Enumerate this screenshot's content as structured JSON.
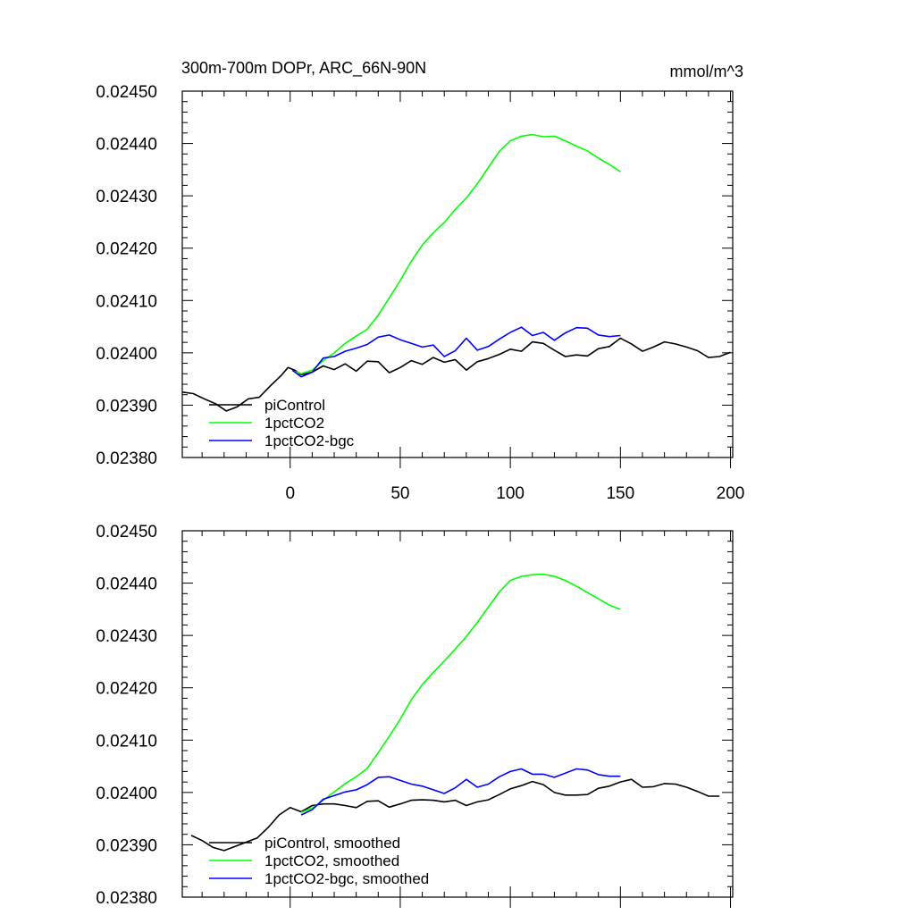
{
  "chart_data": [
    {
      "type": "line",
      "title": "300m-700m DOPr, ARC_66N-90N",
      "units": "mmol/m^3",
      "xlim": [
        -49,
        201
      ],
      "ylim": [
        0.0238,
        0.0245
      ],
      "yticks": [
        "0.02380",
        "0.02390",
        "0.02400",
        "0.02410",
        "0.02420",
        "0.02430",
        "0.02440",
        "0.02450"
      ],
      "xticks": [
        "0",
        "50",
        "100",
        "150",
        "200"
      ],
      "legend_position": "bottom-left",
      "series": [
        {
          "name": "piControl",
          "color": "#000000",
          "points": [
            [
              -49,
              0.023925
            ],
            [
              -44,
              0.023922
            ],
            [
              -39,
              0.023912
            ],
            [
              -34,
              0.023903
            ],
            [
              -29,
              0.023889
            ],
            [
              -24,
              0.023897
            ],
            [
              -19,
              0.023912
            ],
            [
              -14,
              0.023915
            ],
            [
              -9,
              0.023937
            ],
            [
              -4,
              0.023957
            ],
            [
              -1,
              0.023972
            ],
            [
              2,
              0.023967
            ],
            [
              5,
              0.023958
            ],
            [
              10,
              0.023963
            ],
            [
              15,
              0.023975
            ],
            [
              20,
              0.023968
            ],
            [
              25,
              0.023979
            ],
            [
              30,
              0.023965
            ],
            [
              35,
              0.023984
            ],
            [
              40,
              0.023983
            ],
            [
              45,
              0.023962
            ],
            [
              50,
              0.023972
            ],
            [
              55,
              0.023985
            ],
            [
              60,
              0.023978
            ],
            [
              65,
              0.023991
            ],
            [
              70,
              0.023982
            ],
            [
              75,
              0.023987
            ],
            [
              80,
              0.023967
            ],
            [
              85,
              0.023983
            ],
            [
              90,
              0.023989
            ],
            [
              95,
              0.023997
            ],
            [
              100,
              0.024007
            ],
            [
              105,
              0.024003
            ],
            [
              110,
              0.024021
            ],
            [
              115,
              0.024018
            ],
            [
              120,
              0.024005
            ],
            [
              125,
              0.023993
            ],
            [
              130,
              0.023996
            ],
            [
              135,
              0.023994
            ],
            [
              140,
              0.024008
            ],
            [
              145,
              0.024012
            ],
            [
              150,
              0.024028
            ],
            [
              155,
              0.024017
            ],
            [
              160,
              0.024003
            ],
            [
              165,
              0.024011
            ],
            [
              170,
              0.024021
            ],
            [
              175,
              0.024017
            ],
            [
              180,
              0.024011
            ],
            [
              185,
              0.024004
            ],
            [
              190,
              0.023991
            ],
            [
              195,
              0.023993
            ],
            [
              200,
              0.024001
            ]
          ]
        },
        {
          "name": "1pctCO2",
          "color": "#00ff00",
          "points": [
            [
              1,
              0.023966
            ],
            [
              5,
              0.02396
            ],
            [
              10,
              0.023967
            ],
            [
              15,
              0.023985
            ],
            [
              20,
              0.024
            ],
            [
              25,
              0.024018
            ],
            [
              30,
              0.024032
            ],
            [
              35,
              0.024045
            ],
            [
              40,
              0.024072
            ],
            [
              45,
              0.024105
            ],
            [
              50,
              0.024138
            ],
            [
              55,
              0.024175
            ],
            [
              60,
              0.024206
            ],
            [
              65,
              0.024229
            ],
            [
              70,
              0.024249
            ],
            [
              75,
              0.024274
            ],
            [
              80,
              0.024296
            ],
            [
              85,
              0.024323
            ],
            [
              90,
              0.024354
            ],
            [
              95,
              0.024385
            ],
            [
              100,
              0.024405
            ],
            [
              105,
              0.024414
            ],
            [
              110,
              0.024417
            ],
            [
              115,
              0.024413
            ],
            [
              120,
              0.024414
            ],
            [
              125,
              0.024405
            ],
            [
              130,
              0.024395
            ],
            [
              135,
              0.024386
            ],
            [
              140,
              0.024372
            ],
            [
              145,
              0.02436
            ],
            [
              150,
              0.024346
            ]
          ]
        },
        {
          "name": "1pctCO2-bgc",
          "color": "#0000ff",
          "points": [
            [
              1,
              0.023967
            ],
            [
              5,
              0.023954
            ],
            [
              10,
              0.023963
            ],
            [
              15,
              0.02399
            ],
            [
              20,
              0.023993
            ],
            [
              25,
              0.024003
            ],
            [
              30,
              0.024009
            ],
            [
              35,
              0.024016
            ],
            [
              40,
              0.02403
            ],
            [
              45,
              0.024034
            ],
            [
              50,
              0.024025
            ],
            [
              55,
              0.024018
            ],
            [
              60,
              0.024011
            ],
            [
              65,
              0.024015
            ],
            [
              70,
              0.023993
            ],
            [
              75,
              0.024004
            ],
            [
              80,
              0.024028
            ],
            [
              85,
              0.024005
            ],
            [
              90,
              0.024012
            ],
            [
              95,
              0.024026
            ],
            [
              100,
              0.024039
            ],
            [
              105,
              0.024049
            ],
            [
              110,
              0.024033
            ],
            [
              115,
              0.024039
            ],
            [
              120,
              0.024024
            ],
            [
              125,
              0.024038
            ],
            [
              130,
              0.024048
            ],
            [
              135,
              0.024047
            ],
            [
              140,
              0.024034
            ],
            [
              145,
              0.024031
            ],
            [
              150,
              0.024033
            ]
          ]
        }
      ]
    },
    {
      "type": "line",
      "title": "",
      "xlim": [
        -49,
        201
      ],
      "ylim": [
        0.0238,
        0.0245
      ],
      "yticks": [
        "0.02380",
        "0.02390",
        "0.02400",
        "0.02410",
        "0.02420",
        "0.02430",
        "0.02440",
        "0.02450"
      ],
      "legend_position": "bottom-left",
      "series": [
        {
          "name": "piControl, smoothed",
          "color": "#000000",
          "points": [
            [
              -45,
              0.023918
            ],
            [
              -40,
              0.023908
            ],
            [
              -35,
              0.023895
            ],
            [
              -30,
              0.023889
            ],
            [
              -25,
              0.023897
            ],
            [
              -20,
              0.023905
            ],
            [
              -15,
              0.023913
            ],
            [
              -10,
              0.023933
            ],
            [
              -5,
              0.023957
            ],
            [
              0,
              0.023971
            ],
            [
              5,
              0.023963
            ],
            [
              10,
              0.023975
            ],
            [
              15,
              0.023978
            ],
            [
              20,
              0.023978
            ],
            [
              25,
              0.023975
            ],
            [
              30,
              0.023971
            ],
            [
              35,
              0.023983
            ],
            [
              40,
              0.023984
            ],
            [
              45,
              0.023972
            ],
            [
              50,
              0.023978
            ],
            [
              55,
              0.023985
            ],
            [
              60,
              0.023986
            ],
            [
              65,
              0.023985
            ],
            [
              70,
              0.023982
            ],
            [
              75,
              0.023985
            ],
            [
              80,
              0.023975
            ],
            [
              85,
              0.023982
            ],
            [
              90,
              0.023986
            ],
            [
              95,
              0.023996
            ],
            [
              100,
              0.024007
            ],
            [
              105,
              0.024013
            ],
            [
              110,
              0.024021
            ],
            [
              115,
              0.024015
            ],
            [
              120,
              0.024
            ],
            [
              125,
              0.023995
            ],
            [
              130,
              0.023995
            ],
            [
              135,
              0.023996
            ],
            [
              140,
              0.024008
            ],
            [
              145,
              0.024012
            ],
            [
              150,
              0.02402
            ],
            [
              155,
              0.024025
            ],
            [
              160,
              0.02401
            ],
            [
              165,
              0.024011
            ],
            [
              170,
              0.024017
            ],
            [
              175,
              0.024016
            ],
            [
              180,
              0.02401
            ],
            [
              185,
              0.024002
            ],
            [
              190,
              0.023993
            ],
            [
              195,
              0.023993
            ]
          ]
        },
        {
          "name": "1pctCO2, smoothed",
          "color": "#00ff00",
          "points": [
            [
              5,
              0.023962
            ],
            [
              10,
              0.02397
            ],
            [
              15,
              0.023985
            ],
            [
              20,
              0.024001
            ],
            [
              25,
              0.024017
            ],
            [
              30,
              0.02403
            ],
            [
              35,
              0.024046
            ],
            [
              40,
              0.024076
            ],
            [
              45,
              0.024107
            ],
            [
              50,
              0.02414
            ],
            [
              55,
              0.024177
            ],
            [
              60,
              0.024206
            ],
            [
              65,
              0.024229
            ],
            [
              70,
              0.024251
            ],
            [
              75,
              0.024274
            ],
            [
              80,
              0.024298
            ],
            [
              85,
              0.024325
            ],
            [
              90,
              0.024354
            ],
            [
              95,
              0.024383
            ],
            [
              100,
              0.024405
            ],
            [
              105,
              0.024413
            ],
            [
              110,
              0.024416
            ],
            [
              115,
              0.024417
            ],
            [
              120,
              0.024413
            ],
            [
              125,
              0.024405
            ],
            [
              130,
              0.024394
            ],
            [
              135,
              0.024382
            ],
            [
              140,
              0.02437
            ],
            [
              145,
              0.024358
            ],
            [
              150,
              0.02435
            ]
          ]
        },
        {
          "name": "1pctCO2-bgc, smoothed",
          "color": "#0000ff",
          "points": [
            [
              5,
              0.023957
            ],
            [
              10,
              0.023967
            ],
            [
              15,
              0.023987
            ],
            [
              20,
              0.023994
            ],
            [
              25,
              0.024001
            ],
            [
              30,
              0.024005
            ],
            [
              35,
              0.024015
            ],
            [
              40,
              0.024029
            ],
            [
              45,
              0.02403
            ],
            [
              50,
              0.024023
            ],
            [
              55,
              0.024016
            ],
            [
              60,
              0.024012
            ],
            [
              65,
              0.024005
            ],
            [
              70,
              0.023998
            ],
            [
              75,
              0.024009
            ],
            [
              80,
              0.024025
            ],
            [
              85,
              0.02401
            ],
            [
              90,
              0.024016
            ],
            [
              95,
              0.02403
            ],
            [
              100,
              0.02404
            ],
            [
              105,
              0.024045
            ],
            [
              110,
              0.024035
            ],
            [
              115,
              0.024035
            ],
            [
              120,
              0.024029
            ],
            [
              125,
              0.024037
            ],
            [
              130,
              0.024045
            ],
            [
              135,
              0.024043
            ],
            [
              140,
              0.024034
            ],
            [
              145,
              0.024031
            ],
            [
              150,
              0.024031
            ]
          ]
        }
      ]
    }
  ]
}
